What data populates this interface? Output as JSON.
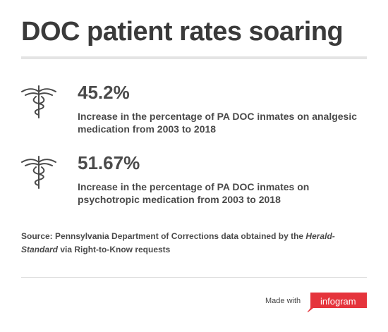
{
  "title": "DOC patient rates soaring",
  "stats": [
    {
      "icon": "caduceus-icon",
      "value": "45.2%",
      "description": "Increase in the percentage of PA DOC inmates on analgesic medication from 2003 to 2018"
    },
    {
      "icon": "caduceus-icon",
      "value": "51.67%",
      "description": "Increase in the percentage of PA DOC inmates on psychotropic medication from 2003 to 2018"
    }
  ],
  "source": {
    "prefix": "Source: Pennsylvania Department of Corrections data obtained by the ",
    "publication": "Herald-Standard",
    "suffix": " via Right-to-Know requests"
  },
  "footer": {
    "made_with": "Made with",
    "brand": "infogram",
    "brand_color": "#e5343c"
  }
}
